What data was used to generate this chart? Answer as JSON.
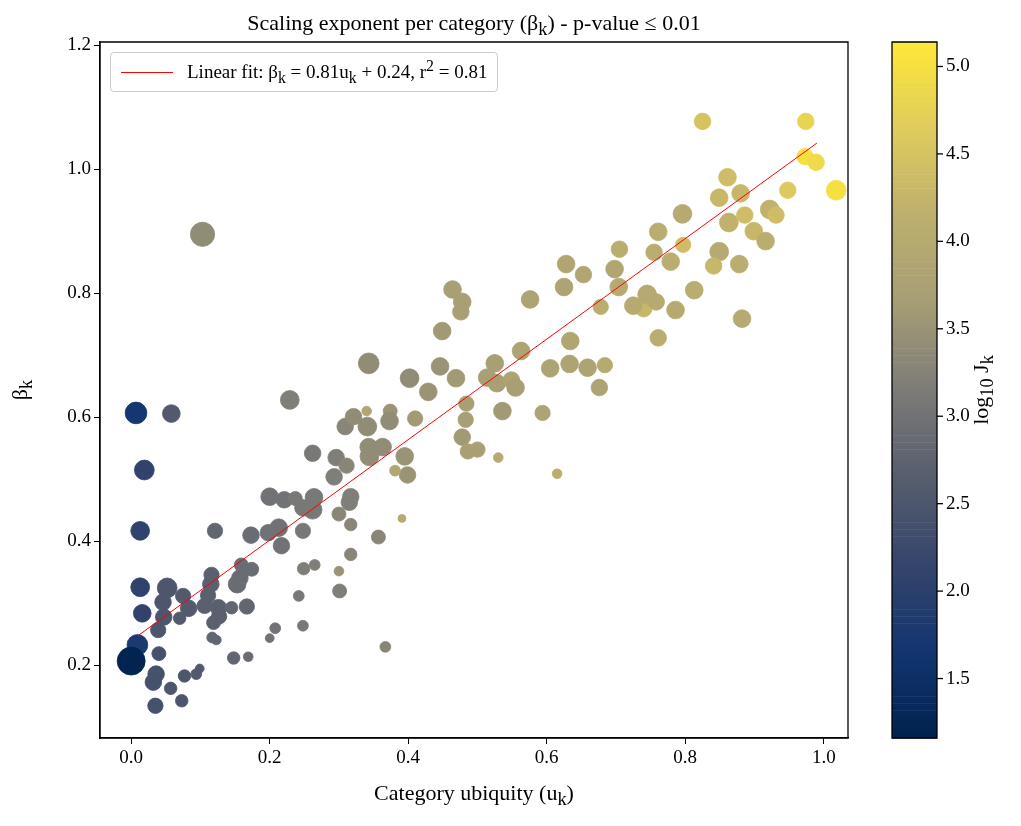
{
  "chart_data": {
    "type": "bubble",
    "title": "Scaling exponent per category (β$_{k}$) - p-value ≤ 0.01",
    "xlabel": "Category ubiquity (u$_{k}$)",
    "ylabel": "β$_{k}$",
    "clabel": "log$_{10}$ J$_{k}$",
    "xlim": [
      -0.045,
      1.035
    ],
    "ylim": [
      0.083,
      1.205
    ],
    "xticks": [
      {
        "value": 0,
        "label": "0.0"
      },
      {
        "value": 0.2,
        "label": "0.2"
      },
      {
        "value": 0.4,
        "label": "0.4"
      },
      {
        "value": 0.6,
        "label": "0.6"
      },
      {
        "value": 0.8,
        "label": "0.8"
      },
      {
        "value": 1,
        "label": "1.0"
      }
    ],
    "yticks": [
      0.2,
      0.4,
      0.6,
      0.8,
      {
        "value": 1,
        "label": "1.0"
      },
      1.2
    ],
    "clim": [
      1.16,
      5.14
    ],
    "cticks": [
      1.5,
      {
        "value": 2,
        "label": "2.0"
      },
      2.5,
      {
        "value": 3,
        "label": "3.0"
      },
      3.5,
      {
        "value": 4,
        "label": "4.0"
      },
      4.5,
      {
        "value": 5,
        "label": "5.0"
      }
    ],
    "legend": "top left",
    "marker": "circle",
    "series": [
      {
        "colors": [
          "#918c76",
          "#918c76",
          "#807e78",
          "#153670",
          "#535a6d",
          "#31436c",
          "#31436c",
          "#31436c",
          "#31436c",
          "#1c3a6f",
          "#012451",
          "#46516c",
          "#46516c",
          "#46516c",
          "#46516c",
          "#4d566d",
          "#4d566d",
          "#4d566d",
          "#535a6d",
          "#535a6d",
          "#4d566d",
          "#4d566d",
          "#535a6d",
          "#4d566d",
          "#4d566d",
          "#535a6d",
          "#535a6d",
          "#5b606e",
          "#5b606e",
          "#5b606e",
          "#5b606e",
          "#5b606e",
          "#5b606e",
          "#5b606e",
          "#626670",
          "#626670",
          "#626670",
          "#626670",
          "#626670",
          "#696c72",
          "#626670",
          "#696c72",
          "#696c72",
          "#696c72",
          "#696c72",
          "#696c72",
          "#717275",
          "#717275",
          "#717275",
          "#717275",
          "#787877",
          "#787877",
          "#787877",
          "#787877",
          "#717275",
          "#787877",
          "#807e78",
          "#807e78",
          "#898577",
          "#787877",
          "#807e78",
          "#807e78",
          "#898577",
          "#898577",
          "#898577",
          "#807e78",
          "#807e78",
          "#9a9376",
          "#787877",
          "#807e78",
          "#717275",
          "#717275",
          "#787877",
          "#898577",
          "#918c76",
          "#918c76",
          "#b1a672",
          "#918c76",
          "#918c76",
          "#898577",
          "#898577",
          "#a89f74",
          "#a89f74",
          "#a89f74",
          "#a29a75",
          "#ada373",
          "#b1a672",
          "#ada373",
          "#b1a672",
          "#b1a672",
          "#b6aa71",
          "#baad70",
          "#b1a672",
          "#ada373",
          "#a89f74",
          "#a89f74",
          "#a89f74",
          "#ada373",
          "#a89f74",
          "#ada373",
          "#ada373",
          "#ada373",
          "#b6aa71",
          "#ada373",
          "#a29a75",
          "#ada373",
          "#9a9376",
          "#a29a75",
          "#918c76",
          "#9a9376",
          "#a29a75",
          "#a89f74",
          "#a89f74",
          "#a29a75",
          "#a89f74",
          "#a89f74",
          "#b6aa71",
          "#baad70",
          "#b6aa71",
          "#9a9376",
          "#918c76",
          "#918c76",
          "#9a9376",
          "#9a9376",
          "#b1a672",
          "#c7b869",
          "#b6aa71",
          "#b6aa71",
          "#baad70",
          "#d5c362",
          "#e9d451",
          "#f5e042",
          "#efda4a",
          "#f5e042",
          "#dcc95f",
          "#cebd66",
          "#c7b869",
          "#c7b869",
          "#c0b26d",
          "#cebd66",
          "#c0b26d",
          "#cebd66",
          "#c7b869",
          "#baad70",
          "#b6aa71",
          "#baad70",
          "#cebd66",
          "#baad70",
          "#baad70",
          "#b6aa71",
          "#c7b869",
          "#baad70",
          "#baad70",
          "#b6aa71",
          "#b6aa71",
          "#b6aa71",
          "#baad70"
        ],
        "x": [
          0.103,
          0.343,
          0.229,
          0.007,
          0.058,
          0.019,
          0.013,
          0.013,
          0.016,
          0.009,
          0.0,
          0.04,
          0.036,
          0.032,
          0.035,
          0.057,
          0.073,
          0.077,
          0.094,
          0.099,
          0.039,
          0.047,
          0.07,
          0.046,
          0.052,
          0.075,
          0.083,
          0.106,
          0.111,
          0.115,
          0.116,
          0.126,
          0.127,
          0.119,
          0.145,
          0.167,
          0.117,
          0.123,
          0.148,
          0.169,
          0.121,
          0.153,
          0.157,
          0.159,
          0.174,
          0.173,
          0.198,
          0.213,
          0.2,
          0.221,
          0.237,
          0.264,
          0.262,
          0.248,
          0.217,
          0.248,
          0.293,
          0.296,
          0.311,
          0.262,
          0.317,
          0.315,
          0.3,
          0.317,
          0.317,
          0.249,
          0.265,
          0.3,
          0.242,
          0.301,
          0.208,
          0.2,
          0.248,
          0.309,
          0.341,
          0.321,
          0.34,
          0.344,
          0.343,
          0.357,
          0.367,
          0.464,
          0.478,
          0.476,
          0.449,
          0.576,
          0.628,
          0.625,
          0.653,
          0.698,
          0.704,
          0.678,
          0.634,
          0.563,
          0.525,
          0.514,
          0.528,
          0.549,
          0.555,
          0.605,
          0.633,
          0.659,
          0.684,
          0.676,
          0.536,
          0.594,
          0.446,
          0.469,
          0.402,
          0.429,
          0.41,
          0.484,
          0.483,
          0.478,
          0.486,
          0.5,
          0.53,
          0.615,
          0.391,
          0.374,
          0.373,
          0.363,
          0.395,
          0.399,
          0.381,
          0.74,
          0.725,
          0.745,
          0.761,
          0.825,
          0.974,
          0.973,
          0.989,
          1.018,
          0.948,
          0.861,
          0.849,
          0.88,
          0.863,
          0.886,
          0.922,
          0.931,
          0.899,
          0.916,
          0.796,
          0.761,
          0.797,
          0.755,
          0.779,
          0.849,
          0.841,
          0.878,
          0.813,
          0.786,
          0.758,
          0.882,
          0.705
        ],
        "values": [
          0.895,
          0.687,
          0.628,
          0.607,
          0.606,
          0.515,
          0.417,
          0.326,
          0.284,
          0.233,
          0.207,
          0.219,
          0.186,
          0.173,
          0.135,
          0.163,
          0.143,
          0.183,
          0.186,
          0.195,
          0.257,
          0.278,
          0.276,
          0.302,
          0.325,
          0.312,
          0.292,
          0.296,
          0.313,
          0.331,
          0.346,
          0.293,
          0.279,
          0.269,
          0.293,
          0.295,
          0.245,
          0.241,
          0.212,
          0.214,
          0.417,
          0.331,
          0.341,
          0.362,
          0.355,
          0.41,
          0.414,
          0.422,
          0.472,
          0.467,
          0.469,
          0.471,
          0.451,
          0.454,
          0.393,
          0.417,
          0.504,
          0.535,
          0.522,
          0.542,
          0.472,
          0.463,
          0.444,
          0.427,
          0.379,
          0.356,
          0.362,
          0.352,
          0.312,
          0.32,
          0.26,
          0.244,
          0.264,
          0.585,
          0.585,
          0.601,
          0.61,
          0.537,
          0.552,
          0.407,
          0.23,
          0.806,
          0.786,
          0.77,
          0.739,
          0.79,
          0.847,
          0.81,
          0.83,
          0.839,
          0.81,
          0.778,
          0.723,
          0.707,
          0.687,
          0.664,
          0.655,
          0.66,
          0.648,
          0.679,
          0.686,
          0.68,
          0.684,
          0.648,
          0.61,
          0.607,
          0.682,
          0.663,
          0.663,
          0.641,
          0.598,
          0.622,
          0.596,
          0.568,
          0.545,
          0.548,
          0.535,
          0.509,
          0.437,
          0.61,
          0.594,
          0.552,
          0.537,
          0.507,
          0.514,
          0.775,
          0.78,
          0.798,
          0.728,
          1.077,
          1.077,
          1.02,
          1.011,
          0.966,
          0.966,
          0.987,
          0.954,
          0.961,
          0.914,
          0.926,
          0.935,
          0.926,
          0.9,
          0.884,
          0.928,
          0.899,
          0.878,
          0.866,
          0.851,
          0.867,
          0.844,
          0.847,
          0.805,
          0.773,
          0.786,
          0.759,
          0.871
        ],
        "sizes": [
          0.75,
          0.55,
          0.45,
          0.6,
          0.4,
          0.5,
          0.45,
          0.45,
          0.4,
          0.55,
          1,
          0.25,
          0.35,
          0.35,
          0.3,
          0.2,
          0.2,
          0.2,
          0.15,
          0.1,
          0.3,
          0.35,
          0.2,
          0.35,
          0.5,
          0.3,
          0.35,
          0.3,
          0.3,
          0.35,
          0.3,
          0.35,
          0.3,
          0.25,
          0.2,
          0.3,
          0.15,
          0.12,
          0.2,
          0.12,
          0.3,
          0.4,
          0.35,
          0.25,
          0.25,
          0.35,
          0.35,
          0.4,
          0.4,
          0.35,
          0.25,
          0.4,
          0.45,
          0.35,
          0.35,
          0.3,
          0.35,
          0.35,
          0.3,
          0.35,
          0.35,
          0.35,
          0.25,
          0.2,
          0.2,
          0.2,
          0.15,
          0.12,
          0.15,
          0.25,
          0.15,
          0.1,
          0.15,
          0.35,
          0.45,
          0.35,
          0.12,
          0.45,
          0.4,
          0.25,
          0.15,
          0.4,
          0.4,
          0.35,
          0.4,
          0.4,
          0.4,
          0.4,
          0.35,
          0.4,
          0.4,
          0.3,
          0.4,
          0.4,
          0.4,
          0.4,
          0.4,
          0.35,
          0.4,
          0.4,
          0.4,
          0.4,
          0.3,
          0.35,
          0.4,
          0.3,
          0.4,
          0.4,
          0.45,
          0.4,
          0.3,
          0.3,
          0.3,
          0.35,
          0.3,
          0.3,
          0.12,
          0.12,
          0.08,
          0.25,
          0.4,
          0.4,
          0.4,
          0.35,
          0.15,
          0.35,
          0.4,
          0.45,
          0.35,
          0.35,
          0.35,
          0.35,
          0.35,
          0.5,
          0.35,
          0.4,
          0.4,
          0.4,
          0.45,
          0.35,
          0.45,
          0.35,
          0.4,
          0.4,
          0.45,
          0.4,
          0.3,
          0.35,
          0.4,
          0.45,
          0.35,
          0.4,
          0.4,
          0.4,
          0.35,
          0.4,
          0.35
        ],
        "cvalues": [
          3.4,
          3.4,
          3.2,
          1.7,
          2.6,
          2.1,
          2.1,
          2.1,
          2.1,
          1.8,
          1.2,
          2.4,
          2.4,
          2.4,
          2.4,
          2.5,
          2.5,
          2.5,
          2.6,
          2.6,
          2.5,
          2.5,
          2.6,
          2.5,
          2.5,
          2.6,
          2.6,
          2.7,
          2.7,
          2.7,
          2.7,
          2.7,
          2.7,
          2.7,
          2.8,
          2.8,
          2.8,
          2.8,
          2.8,
          2.9,
          2.8,
          2.9,
          2.9,
          2.9,
          2.9,
          2.9,
          3.0,
          3.0,
          3.0,
          3.0,
          3.1,
          3.1,
          3.1,
          3.1,
          3.0,
          3.1,
          3.2,
          3.2,
          3.3,
          3.1,
          3.2,
          3.2,
          3.3,
          3.3,
          3.3,
          3.2,
          3.2,
          3.5,
          3.1,
          3.2,
          3.0,
          3.0,
          3.1,
          3.3,
          3.4,
          3.4,
          3.9,
          3.4,
          3.4,
          3.3,
          3.3,
          3.7,
          3.7,
          3.7,
          3.6,
          3.8,
          3.9,
          3.8,
          3.9,
          3.9,
          4.0,
          4.1,
          3.9,
          3.8,
          3.7,
          3.7,
          3.7,
          3.8,
          3.7,
          3.8,
          3.8,
          3.8,
          4.0,
          3.8,
          3.6,
          3.8,
          3.5,
          3.6,
          3.4,
          3.5,
          3.6,
          3.7,
          3.7,
          3.6,
          3.7,
          3.7,
          4.0,
          4.1,
          4.0,
          3.5,
          3.4,
          3.4,
          3.5,
          3.5,
          3.9,
          4.3,
          4.0,
          4.0,
          4.1,
          4.5,
          4.8,
          5.0,
          4.9,
          5.0,
          4.6,
          4.4,
          4.3,
          4.3,
          4.2,
          4.4,
          4.2,
          4.4,
          4.3,
          4.1,
          4.0,
          4.1,
          4.4,
          4.1,
          4.1,
          4.0,
          4.3,
          4.1,
          4.1,
          4.0,
          4.0,
          4.0,
          4.1
        ]
      },
      {
        "type": "line",
        "name": "Linear fit: β$_{k}$ = 0.81u$_{k}$ + 0.24, r$^{2}$ = 0.81",
        "color": "#ff0000",
        "marker": "none",
        "x": [
          0.01,
          0.99
        ],
        "values": [
          0.248,
          1.042
        ]
      }
    ]
  }
}
